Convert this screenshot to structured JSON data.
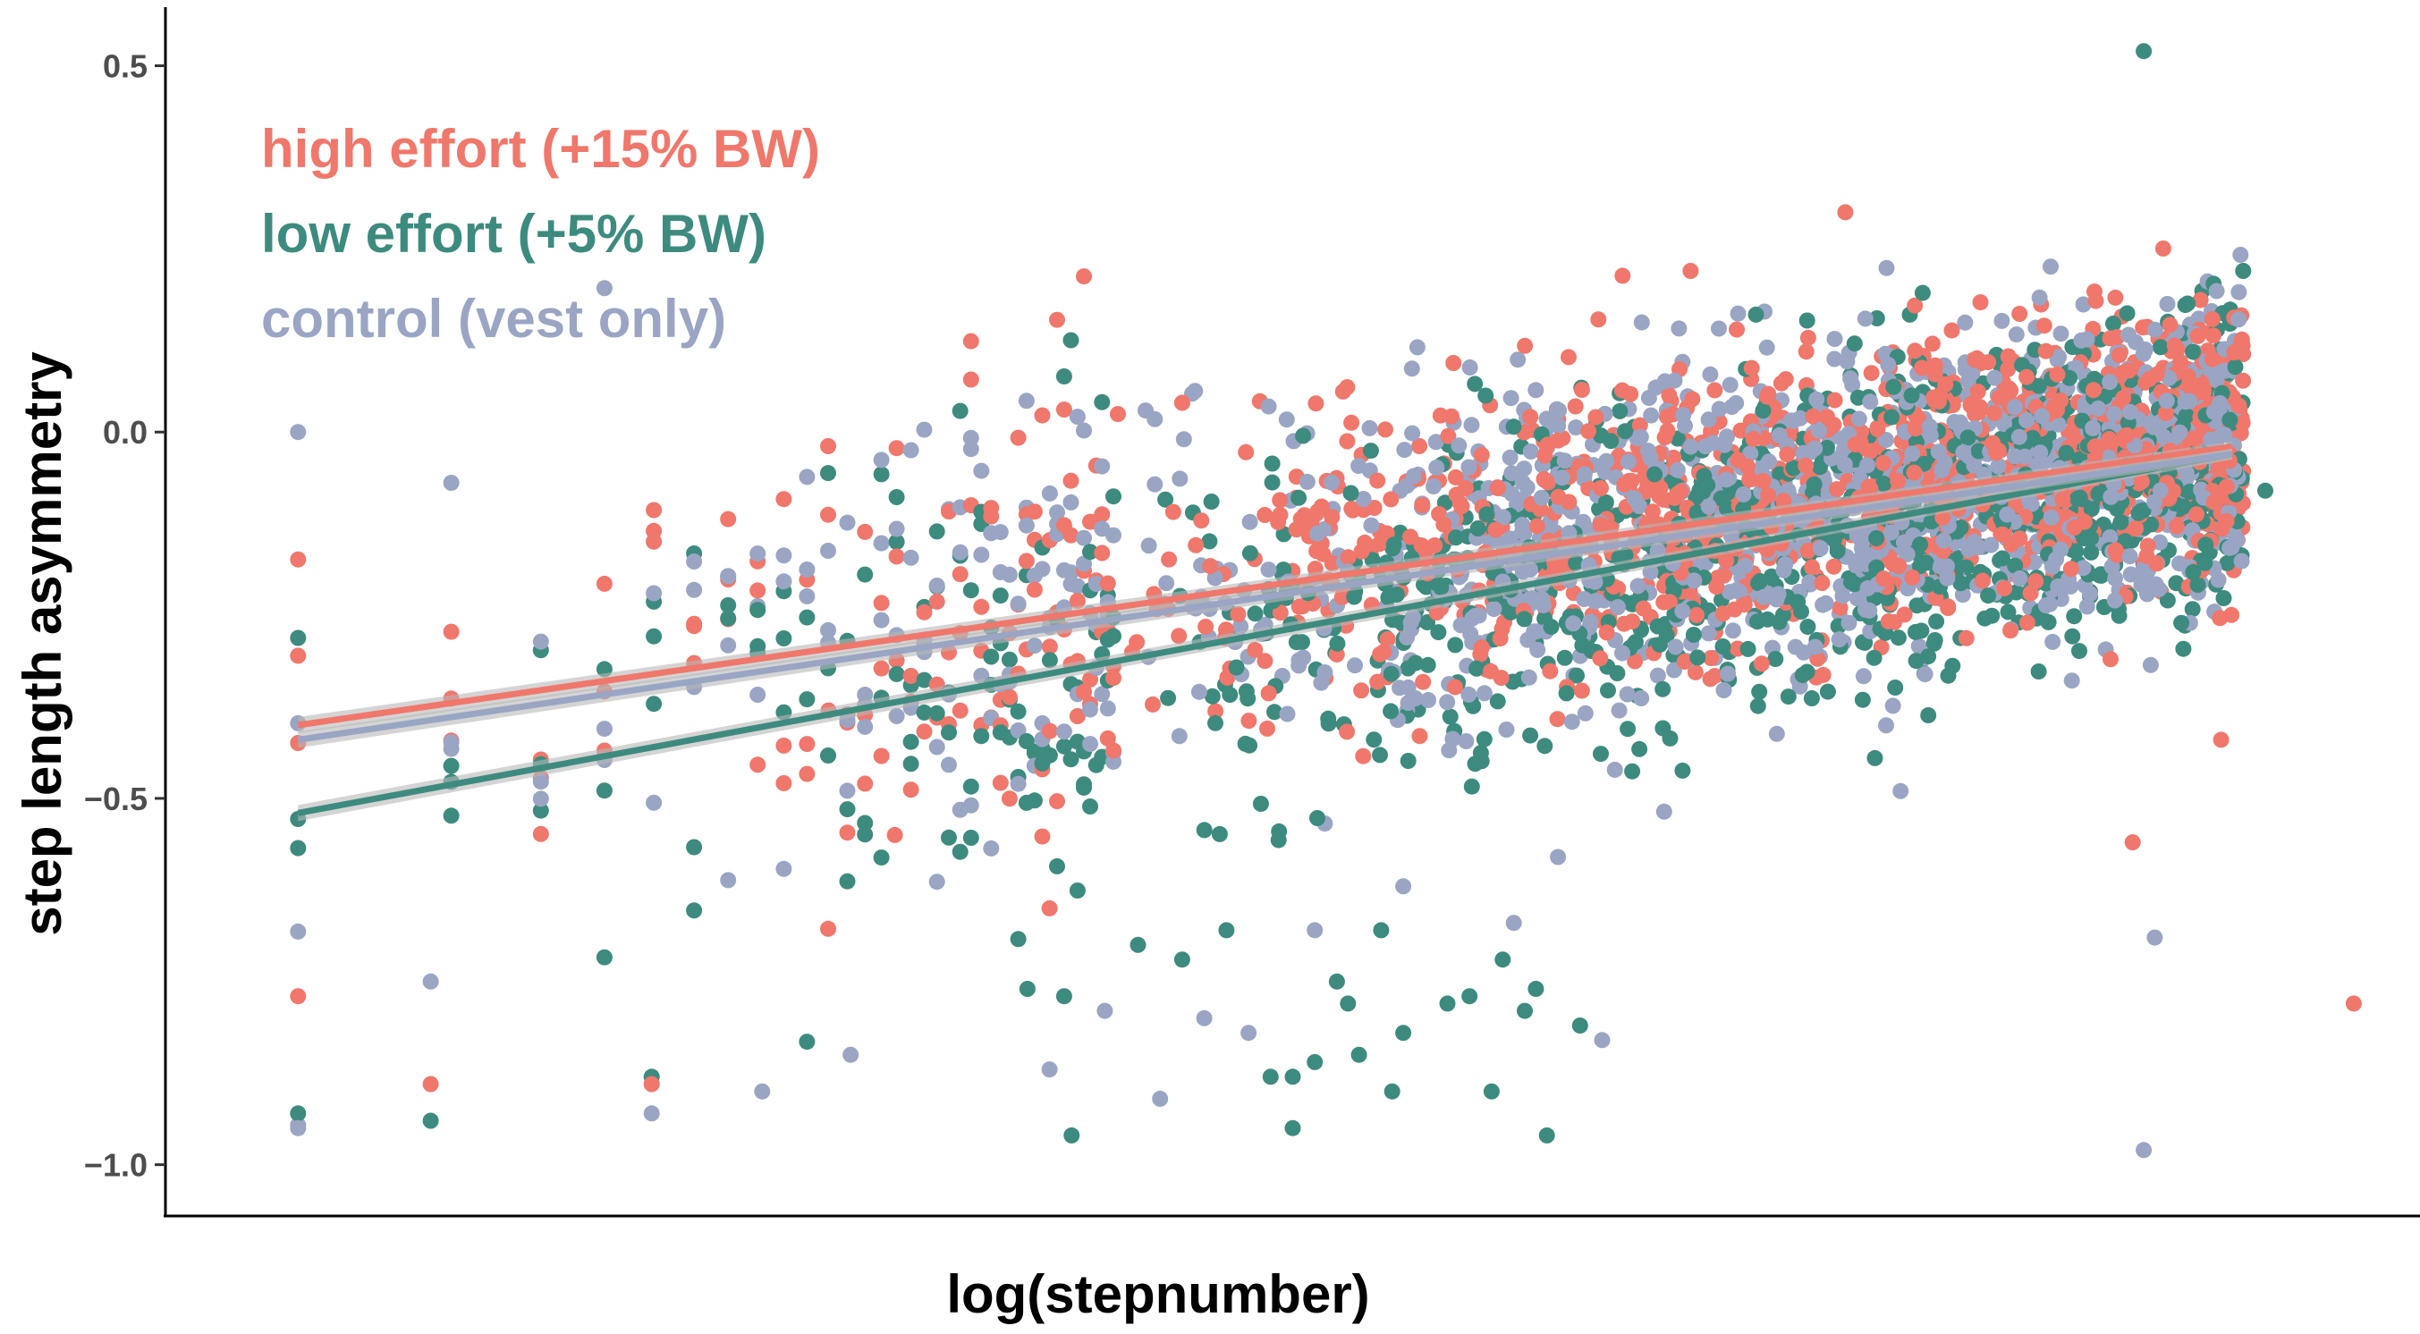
{
  "chart_data": {
    "type": "scatter",
    "title": "",
    "xlabel": "log(stepnumber)",
    "ylabel": "step length asymmetry",
    "xlim": [
      -0.6,
      9.6
    ],
    "ylim": [
      -1.07,
      0.58
    ],
    "y_ticks": [
      {
        "value": 0.5,
        "label": "0.5"
      },
      {
        "value": 0.0,
        "label": "0.0"
      },
      {
        "value": -0.5,
        "label": "−0.5"
      },
      {
        "value": -1.0,
        "label": "−1.0"
      }
    ],
    "x_ticks_shown": false,
    "grid": false,
    "legend": {
      "placement": "top-left",
      "style": "colored-text"
    },
    "series": [
      {
        "name": "high effort (+15% BW)",
        "color": "#f0776b",
        "fit": {
          "x": [
            0.0,
            8.75
          ],
          "y": [
            -0.4,
            -0.02
          ]
        },
        "cloud": {
          "n": 1100,
          "slope": 0.044,
          "intercept": -0.38,
          "sd": 0.12,
          "seed": 11
        },
        "points": [
          [
            7.0,
            0.3
          ],
          [
            8.3,
            -0.56
          ],
          [
            9.3,
            -0.78
          ],
          [
            6.3,
            0.22
          ],
          [
            0.0,
            -0.77
          ],
          [
            0.6,
            -0.89
          ],
          [
            1.6,
            -0.89
          ],
          [
            4.0,
            0.04
          ],
          [
            8.7,
            -0.42
          ],
          [
            2.4,
            -0.38
          ],
          [
            2.7,
            -0.55
          ],
          [
            3.4,
            -0.65
          ],
          [
            8.2,
            -0.31
          ]
        ]
      },
      {
        "name": "low effort (+5% BW)",
        "color": "#3d8b7e",
        "fit": {
          "x": [
            0.0,
            8.75
          ],
          "y": [
            -0.52,
            -0.03
          ]
        },
        "cloud": {
          "n": 1000,
          "slope": 0.056,
          "intercept": -0.52,
          "sd": 0.13,
          "seed": 29
        },
        "points": [
          [
            8.35,
            0.52
          ],
          [
            7.35,
            0.19
          ],
          [
            7.3,
            0.05
          ],
          [
            8.8,
            0.22
          ],
          [
            0.0,
            -0.93
          ],
          [
            0.6,
            -0.94
          ],
          [
            1.6,
            -0.88
          ],
          [
            3.5,
            -0.96
          ],
          [
            4.5,
            -0.95
          ],
          [
            4.5,
            -0.88
          ],
          [
            4.8,
            -0.85
          ],
          [
            5.0,
            -0.82
          ],
          [
            5.2,
            -0.78
          ],
          [
            5.4,
            -0.9
          ],
          [
            4.95,
            -0.9
          ],
          [
            4.7,
            -0.75
          ],
          [
            4.75,
            -0.78
          ],
          [
            5.45,
            -0.72
          ],
          [
            5.6,
            -0.76
          ],
          [
            4.9,
            -0.68
          ],
          [
            5.65,
            -0.96
          ],
          [
            3.8,
            -0.7
          ],
          [
            4.0,
            -0.72
          ],
          [
            4.2,
            -0.68
          ],
          [
            3.3,
            -0.76
          ],
          [
            4.4,
            -0.88
          ],
          [
            4.6,
            -0.86
          ],
          [
            5.3,
            -0.77
          ],
          [
            5.55,
            -0.79
          ],
          [
            5.8,
            -0.81
          ],
          [
            8.9,
            -0.08
          ]
        ]
      },
      {
        "name": "control (vest only)",
        "color": "#9aa5c4",
        "fit": {
          "x": [
            0.0,
            8.75
          ],
          "y": [
            -0.42,
            -0.03
          ]
        },
        "cloud": {
          "n": 1100,
          "slope": 0.045,
          "intercept": -0.41,
          "sd": 0.13,
          "seed": 47
        },
        "points": [
          [
            0.0,
            0.0
          ],
          [
            8.35,
            -0.98
          ],
          [
            8.4,
            -0.69
          ],
          [
            0.0,
            -0.95
          ],
          [
            0.6,
            -0.75
          ],
          [
            1.6,
            -0.93
          ],
          [
            2.1,
            -0.9
          ],
          [
            2.5,
            -0.85
          ],
          [
            3.4,
            -0.87
          ],
          [
            4.1,
            -0.8
          ],
          [
            4.3,
            -0.82
          ],
          [
            4.6,
            -0.68
          ],
          [
            5.0,
            -0.62
          ],
          [
            5.5,
            -0.67
          ],
          [
            5.9,
            -0.83
          ],
          [
            3.9,
            -0.91
          ],
          [
            3.65,
            -0.79
          ],
          [
            5.7,
            -0.58
          ],
          [
            7.25,
            -0.49
          ]
        ]
      }
    ]
  }
}
